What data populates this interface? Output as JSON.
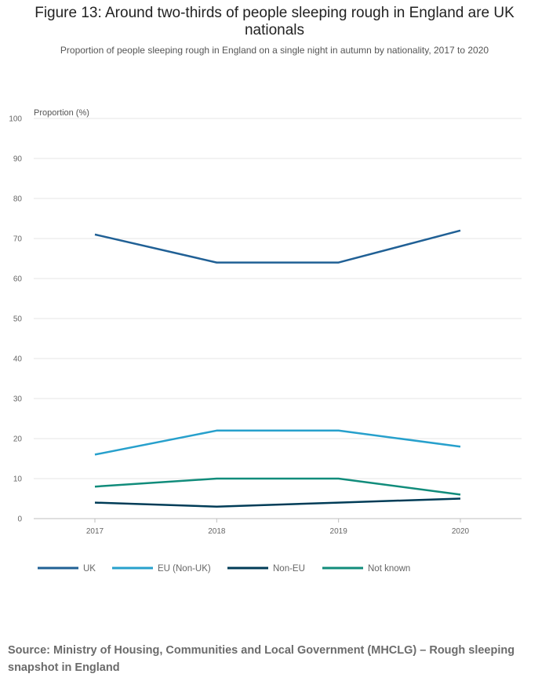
{
  "chart_data": {
    "type": "line",
    "title": "Figure 13: Around two-thirds of people sleeping rough in England are UK nationals",
    "subtitle": "Proportion of people sleeping rough in England on a single night in autumn by nationality, 2017 to 2020",
    "ylabel": "Proportion (%)",
    "xlabel": "",
    "categories": [
      "2017",
      "2018",
      "2019",
      "2020"
    ],
    "ylim": [
      0,
      100
    ],
    "yticks": [
      "0",
      "10",
      "20",
      "30",
      "40",
      "50",
      "60",
      "70",
      "80",
      "90",
      "100"
    ],
    "grid": true,
    "legend_position": "bottom",
    "series": [
      {
        "name": "UK",
        "color": "#206095",
        "values": [
          71,
          64,
          64,
          72
        ]
      },
      {
        "name": "EU (Non-UK)",
        "color": "#27a0cc",
        "values": [
          16,
          22,
          22,
          18
        ]
      },
      {
        "name": "Non-EU",
        "color": "#003c57",
        "values": [
          4,
          3,
          4,
          5
        ]
      },
      {
        "name": "Not known",
        "color": "#118c7b",
        "values": [
          8,
          10,
          10,
          6
        ]
      }
    ]
  },
  "source": "Source: Ministry of Housing, Communities and Local Government (MHCLG) – Rough sleeping snapshot in England"
}
